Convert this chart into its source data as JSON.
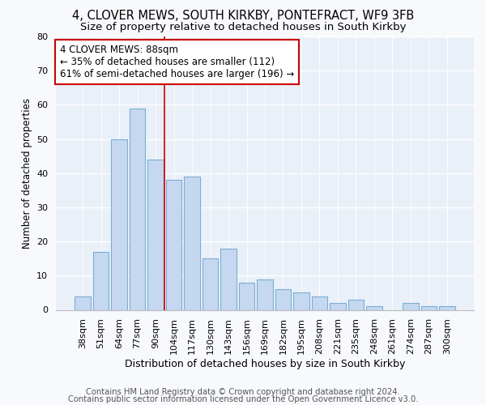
{
  "title1": "4, CLOVER MEWS, SOUTH KIRKBY, PONTEFRACT, WF9 3FB",
  "title2": "Size of property relative to detached houses in South Kirkby",
  "xlabel": "Distribution of detached houses by size in South Kirkby",
  "ylabel": "Number of detached properties",
  "footnote1": "Contains HM Land Registry data © Crown copyright and database right 2024.",
  "footnote2": "Contains public sector information licensed under the Open Government Licence v3.0.",
  "categories": [
    "38sqm",
    "51sqm",
    "64sqm",
    "77sqm",
    "90sqm",
    "104sqm",
    "117sqm",
    "130sqm",
    "143sqm",
    "156sqm",
    "169sqm",
    "182sqm",
    "195sqm",
    "208sqm",
    "221sqm",
    "235sqm",
    "248sqm",
    "261sqm",
    "274sqm",
    "287sqm",
    "300sqm"
  ],
  "values": [
    4,
    17,
    50,
    59,
    44,
    38,
    39,
    15,
    18,
    8,
    9,
    6,
    5,
    4,
    2,
    3,
    1,
    0,
    2,
    1,
    1
  ],
  "bar_color": "#c5d8f0",
  "bar_edge_color": "#7aadd4",
  "vline_color": "#cc0000",
  "vline_x": 4.5,
  "annotation_text": "4 CLOVER MEWS: 88sqm\n← 35% of detached houses are smaller (112)\n61% of semi-detached houses are larger (196) →",
  "annotation_box_color": "#ffffff",
  "annotation_box_edge": "#cc0000",
  "ylim": [
    0,
    80
  ],
  "yticks": [
    0,
    10,
    20,
    30,
    40,
    50,
    60,
    70,
    80
  ],
  "bg_color": "#f7f9fc",
  "plot_bg_color": "#eaf0f8",
  "grid_color": "#ffffff",
  "title1_fontsize": 10.5,
  "title2_fontsize": 9.5,
  "ylabel_fontsize": 8.5,
  "xlabel_fontsize": 9,
  "footnote_fontsize": 7.2,
  "tick_fontsize": 8,
  "annotation_fontsize": 8.5
}
